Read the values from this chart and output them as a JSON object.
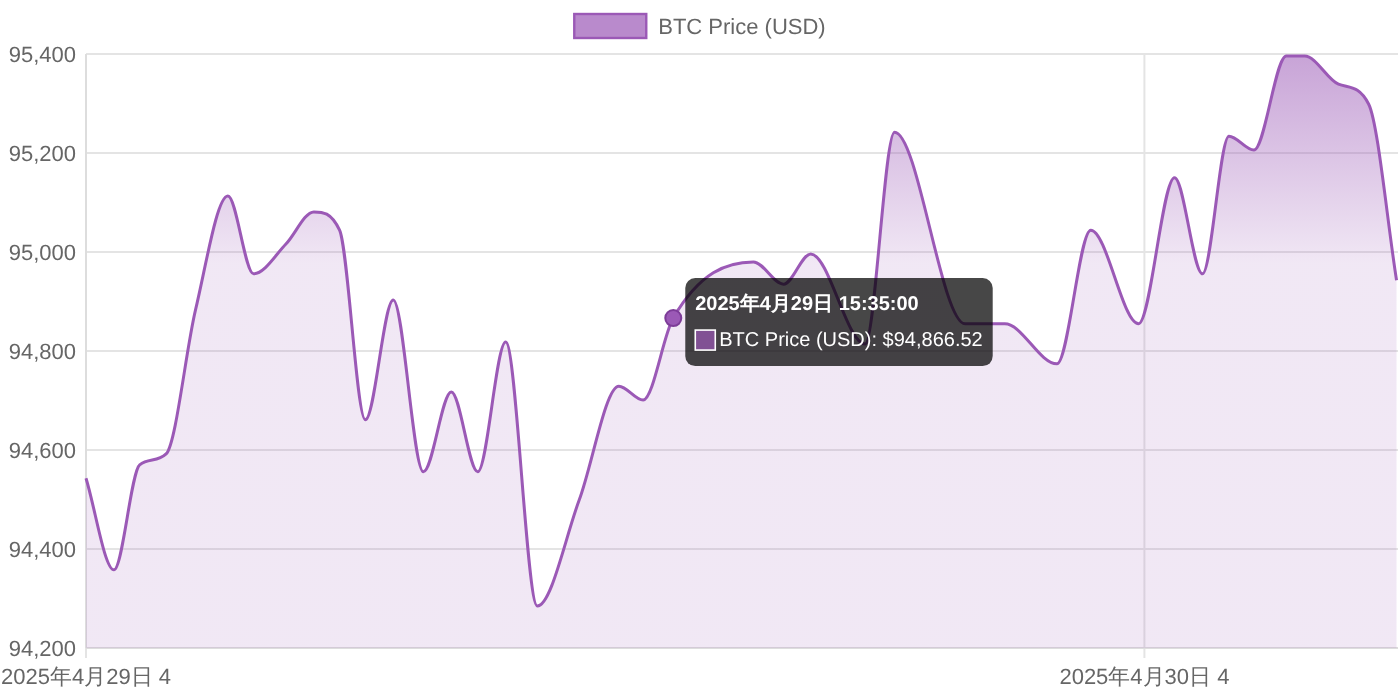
{
  "chart_data": {
    "type": "area",
    "xlim": [
      "2025-04-29T04:00",
      "2025-04-30T09:45"
    ],
    "ylim": [
      94200,
      95400
    ],
    "xticks": [
      {
        "value": "2025-04-29T04:00",
        "label": "2025年4月29日 4"
      },
      {
        "value": "2025-04-30T04:00",
        "label": "2025年4月30日 4"
      }
    ],
    "yticks": [
      {
        "value": 94200,
        "label": "94,200"
      },
      {
        "value": 94400,
        "label": "94,400"
      },
      {
        "value": 94600,
        "label": "94,600"
      },
      {
        "value": 94800,
        "label": "94,800"
      },
      {
        "value": 95000,
        "label": "95,000"
      },
      {
        "value": 95200,
        "label": "95,200"
      },
      {
        "value": 95400,
        "label": "95,400"
      }
    ],
    "grid": true,
    "legend": "top",
    "marker": "none",
    "x": [
      "2025-04-29T04:00",
      "2025-04-29T04:38",
      "2025-04-29T05:13",
      "2025-04-29T05:49",
      "2025-04-29T06:29",
      "2025-04-29T07:13",
      "2025-04-29T07:48",
      "2025-04-29T08:32",
      "2025-04-29T09:10",
      "2025-04-29T09:45",
      "2025-04-29T10:20",
      "2025-04-29T10:58",
      "2025-04-29T11:39",
      "2025-04-29T12:17",
      "2025-04-29T12:53",
      "2025-04-29T13:31",
      "2025-04-29T14:14",
      "2025-04-29T15:11",
      "2025-04-29T16:05",
      "2025-04-29T16:38",
      "2025-04-29T17:19",
      "2025-04-29T19:08",
      "2025-04-29T19:49",
      "2025-04-29T20:26",
      "2025-04-29T21:40",
      "2025-04-29T22:20",
      "2025-04-29T23:56",
      "2025-04-30T00:50",
      "2025-04-30T02:01",
      "2025-04-30T02:47",
      "2025-04-30T03:52",
      "2025-04-30T04:41",
      "2025-04-30T05:19",
      "2025-04-30T05:55",
      "2025-04-30T06:29",
      "2025-04-30T07:13",
      "2025-04-30T07:38",
      "2025-04-30T08:24",
      "2025-04-30T09:05",
      "2025-04-30T09:43"
    ],
    "series": [
      {
        "name": "BTC Price (USD)",
        "color": "#9b59b6",
        "values": [
          94543,
          94358,
          94570,
          94592,
          94883,
          95113,
          94956,
          95016,
          95081,
          95044,
          94661,
          94903,
          94556,
          94717,
          94556,
          94818,
          94285,
          94499,
          94729,
          94701,
          94867,
          94980,
          94935,
          94996,
          94814,
          95242,
          94855,
          94855,
          94774,
          95044,
          94855,
          95150,
          94956,
          95234,
          95206,
          95396,
          95396,
          95339,
          95299,
          94943
        ]
      }
    ],
    "annotations": [
      {
        "text": "2025年4月29日 15:35:00",
        "x": "2025-04-29T17:19",
        "y": 94866.52
      },
      {
        "text": "BTC Price (USD): $94,866.52",
        "x": "2025-04-29T17:19",
        "y": 94866.52
      }
    ]
  }
}
